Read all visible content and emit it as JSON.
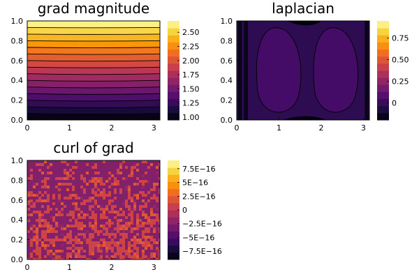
{
  "chart_data": [
    {
      "type": "heatmap",
      "title": "grad magnitude",
      "xlabel": "",
      "ylabel": "",
      "xlim": [
        0,
        3.14159
      ],
      "ylim": [
        0,
        1.0
      ],
      "x_ticks": [
        "0",
        "1",
        "2",
        "3"
      ],
      "y_ticks": [
        "0.0",
        "0.2",
        "0.4",
        "0.6",
        "0.8",
        "1.0"
      ],
      "x_tick_values": [
        0,
        1,
        2,
        3
      ],
      "y_tick_values": [
        0.0,
        0.2,
        0.4,
        0.6,
        0.8,
        1.0
      ],
      "colorbar": {
        "range": [
          0.95,
          2.7
        ],
        "ticks": [
          "1.00",
          "1.25",
          "1.50",
          "1.75",
          "2.00",
          "2.25",
          "2.50"
        ],
        "tick_values": [
          1.0,
          1.25,
          1.5,
          1.75,
          2.0,
          2.25,
          2.5
        ],
        "colormap": "inferno"
      },
      "filled_contour": true,
      "contour_levels": 15
    },
    {
      "type": "heatmap",
      "title": "laplacian",
      "xlabel": "",
      "ylabel": "",
      "xlim": [
        0,
        3.14159
      ],
      "ylim": [
        0,
        1.0
      ],
      "x_ticks": [
        "0",
        "1",
        "2",
        "3"
      ],
      "y_ticks": [
        "0.0",
        "0.2",
        "0.4",
        "0.6",
        "0.8",
        "1.0"
      ],
      "x_tick_values": [
        0,
        1,
        2,
        3
      ],
      "y_tick_values": [
        0.0,
        0.2,
        0.4,
        0.6,
        0.8,
        1.0
      ],
      "colorbar": {
        "range": [
          -0.2,
          0.95
        ],
        "ticks": [
          "0",
          "0.25",
          "0.50",
          "0.75"
        ],
        "tick_values": [
          0,
          0.25,
          0.5,
          0.75
        ],
        "colormap": "inferno"
      },
      "filled_contour": true
    },
    {
      "type": "heatmap",
      "title": "curl of grad",
      "xlabel": "",
      "ylabel": "",
      "xlim": [
        0,
        3.14159
      ],
      "ylim": [
        0,
        1.0
      ],
      "x_ticks": [
        "0",
        "1",
        "2",
        "3"
      ],
      "y_ticks": [
        "0.0",
        "0.2",
        "0.4",
        "0.6",
        "0.8",
        "1.0"
      ],
      "x_tick_values": [
        0,
        1,
        2,
        3
      ],
      "y_tick_values": [
        0.0,
        0.2,
        0.4,
        0.6,
        0.8,
        1.0
      ],
      "colorbar": {
        "range": [
          -9e-16,
          9e-16
        ],
        "ticks": [
          "−7.5E−16",
          "−5E−16",
          "−2.5E−16",
          "0",
          "2.5E−16",
          "5E−16",
          "7.5E−16"
        ],
        "tick_values": [
          -7.5e-16,
          -5e-16,
          -2.5e-16,
          0,
          2.5e-16,
          5e-16,
          7.5e-16
        ],
        "colormap": "inferno"
      },
      "filled_contour": true,
      "pattern": "noise"
    }
  ],
  "colors": {
    "inferno": [
      "#000004",
      "#1b0c41",
      "#4a0c6b",
      "#781c6d",
      "#a52c60",
      "#cf4446",
      "#ed6925",
      "#fb9b06",
      "#f7d13d",
      "#fcffa4"
    ]
  }
}
